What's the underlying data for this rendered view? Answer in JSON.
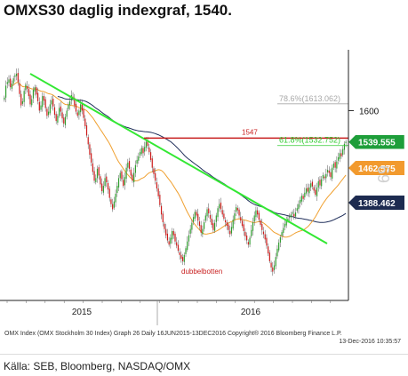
{
  "title": "OMXS30 daglig indexgraf, 1540.",
  "footer": {
    "line1": "OMX Index (OMX Stockholm 30 Index) Graph 26  Daily 16JUN2015-13DEC2016  Copyright® 2016 Bloomberg Finance L.P.",
    "line2": "13-Dec-2016 10:35:57"
  },
  "source": "Källa: SEB, Bloomberg, NASDAQ/OMX",
  "colors": {
    "candle_up": "#2e9e2e",
    "candle_down": "#cc1a1a",
    "wick": "#555555",
    "trend_line": "#33e833",
    "resistance": "#c81e1e",
    "fib_786": "#a8a8a8",
    "fib_618": "#33cc33",
    "ma_short": "#f0a030",
    "ma_long": "#1f2e5a",
    "badge_green": "#1e9e3a",
    "badge_orange": "#f29a2e",
    "badge_navy": "#1d2b50",
    "axis": "#222222"
  },
  "chart_data": {
    "type": "candlestick",
    "title": "OMXS30 daglig indexgraf, 1540.",
    "x_labels": [
      "2015",
      "2016"
    ],
    "y_axis": {
      "ticks": [
        1600
      ],
      "range": [
        1255,
        1700
      ],
      "position": "right",
      "side_label": "69"
    },
    "price_badges": [
      {
        "name": "last",
        "value": "1539.555",
        "color": "#1e9e3a"
      },
      {
        "name": "ma_short",
        "value": "1462.575",
        "color": "#f29a2e"
      },
      {
        "name": "ma_long",
        "value": "1388.462",
        "color": "#1d2b50"
      }
    ],
    "annotations": [
      {
        "name": "resistance",
        "label": "1547",
        "value": 1547
      },
      {
        "name": "fib_786",
        "label": "78.6%(1613.062)",
        "value": 1613.062
      },
      {
        "name": "fib_618",
        "label": "61.8%(1532.752)",
        "value": 1532.752
      },
      {
        "name": "double_bottom",
        "label": "dubbelbotten",
        "value": 1300
      }
    ],
    "trend_line": {
      "start": {
        "index": 0,
        "value": 1671
      },
      "end": {
        "index": 390,
        "value": 1370
      }
    },
    "close_series": [
      1625,
      1648,
      1655,
      1660,
      1645,
      1652,
      1662,
      1668,
      1671,
      1655,
      1632,
      1610,
      1618,
      1638,
      1650,
      1642,
      1628,
      1612,
      1622,
      1640,
      1645,
      1631,
      1618,
      1600,
      1610,
      1628,
      1619,
      1605,
      1590,
      1598,
      1612,
      1620,
      1608,
      1592,
      1580,
      1590,
      1605,
      1598,
      1585,
      1575,
      1588,
      1600,
      1612,
      1618,
      1630,
      1625,
      1610,
      1598,
      1590,
      1600,
      1612,
      1600,
      1586,
      1570,
      1552,
      1535,
      1515,
      1500,
      1482,
      1465,
      1470,
      1488,
      1475,
      1458,
      1445,
      1455,
      1470,
      1462,
      1448,
      1432,
      1420,
      1410,
      1425,
      1440,
      1455,
      1470,
      1480,
      1468,
      1455,
      1472,
      1490,
      1500,
      1488,
      1475,
      1465,
      1480,
      1495,
      1505,
      1512,
      1520,
      1528,
      1518,
      1530,
      1540,
      1532,
      1520,
      1505,
      1490,
      1478,
      1465,
      1450,
      1435,
      1418,
      1400,
      1385,
      1372,
      1360,
      1350,
      1342,
      1355,
      1368,
      1360,
      1348,
      1340,
      1330,
      1322,
      1315,
      1310,
      1322,
      1335,
      1348,
      1360,
      1372,
      1384,
      1395,
      1405,
      1398,
      1388,
      1378,
      1365,
      1372,
      1385,
      1398,
      1410,
      1402,
      1392,
      1380,
      1370,
      1384,
      1398,
      1412,
      1420,
      1410,
      1400,
      1392,
      1385,
      1378,
      1370,
      1362,
      1376,
      1390,
      1402,
      1414,
      1408,
      1398,
      1388,
      1378,
      1368,
      1358,
      1350,
      1342,
      1355,
      1370,
      1385,
      1398,
      1408,
      1400,
      1390,
      1380,
      1370,
      1362,
      1352,
      1340,
      1325,
      1310,
      1298,
      1290,
      1302,
      1318,
      1334,
      1346,
      1356,
      1366,
      1374,
      1382,
      1388,
      1392,
      1396,
      1400,
      1404,
      1396,
      1404,
      1412,
      1420,
      1428,
      1436,
      1430,
      1442,
      1450,
      1444,
      1452,
      1460,
      1454,
      1446,
      1438,
      1452,
      1464,
      1456,
      1468,
      1476,
      1470,
      1478,
      1486,
      1480,
      1472,
      1490,
      1498,
      1490,
      1502,
      1510,
      1518,
      1512,
      1526,
      1536,
      1540
    ]
  }
}
